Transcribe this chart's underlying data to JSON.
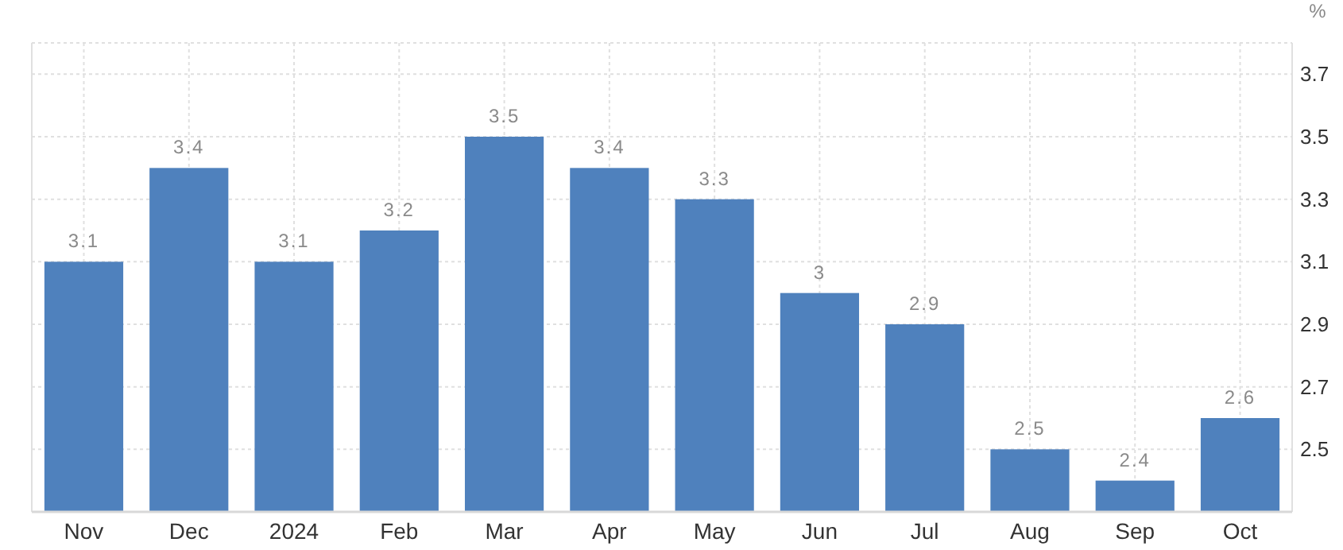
{
  "chart_data": {
    "type": "bar",
    "ylabel": "%",
    "categories": [
      "Nov",
      "Dec",
      "2024",
      "Feb",
      "Mar",
      "Apr",
      "May",
      "Jun",
      "Jul",
      "Aug",
      "Sep",
      "Oct"
    ],
    "values": [
      3.1,
      3.4,
      3.1,
      3.2,
      3.5,
      3.4,
      3.3,
      3,
      2.9,
      2.5,
      2.4,
      2.6
    ],
    "color": "#4f81bd",
    "ylim": [
      2.3,
      3.8
    ],
    "yticks": [
      2.5,
      2.7,
      2.9,
      3.1,
      3.3,
      3.5,
      3.7
    ],
    "grid": true,
    "data_labels": true
  }
}
